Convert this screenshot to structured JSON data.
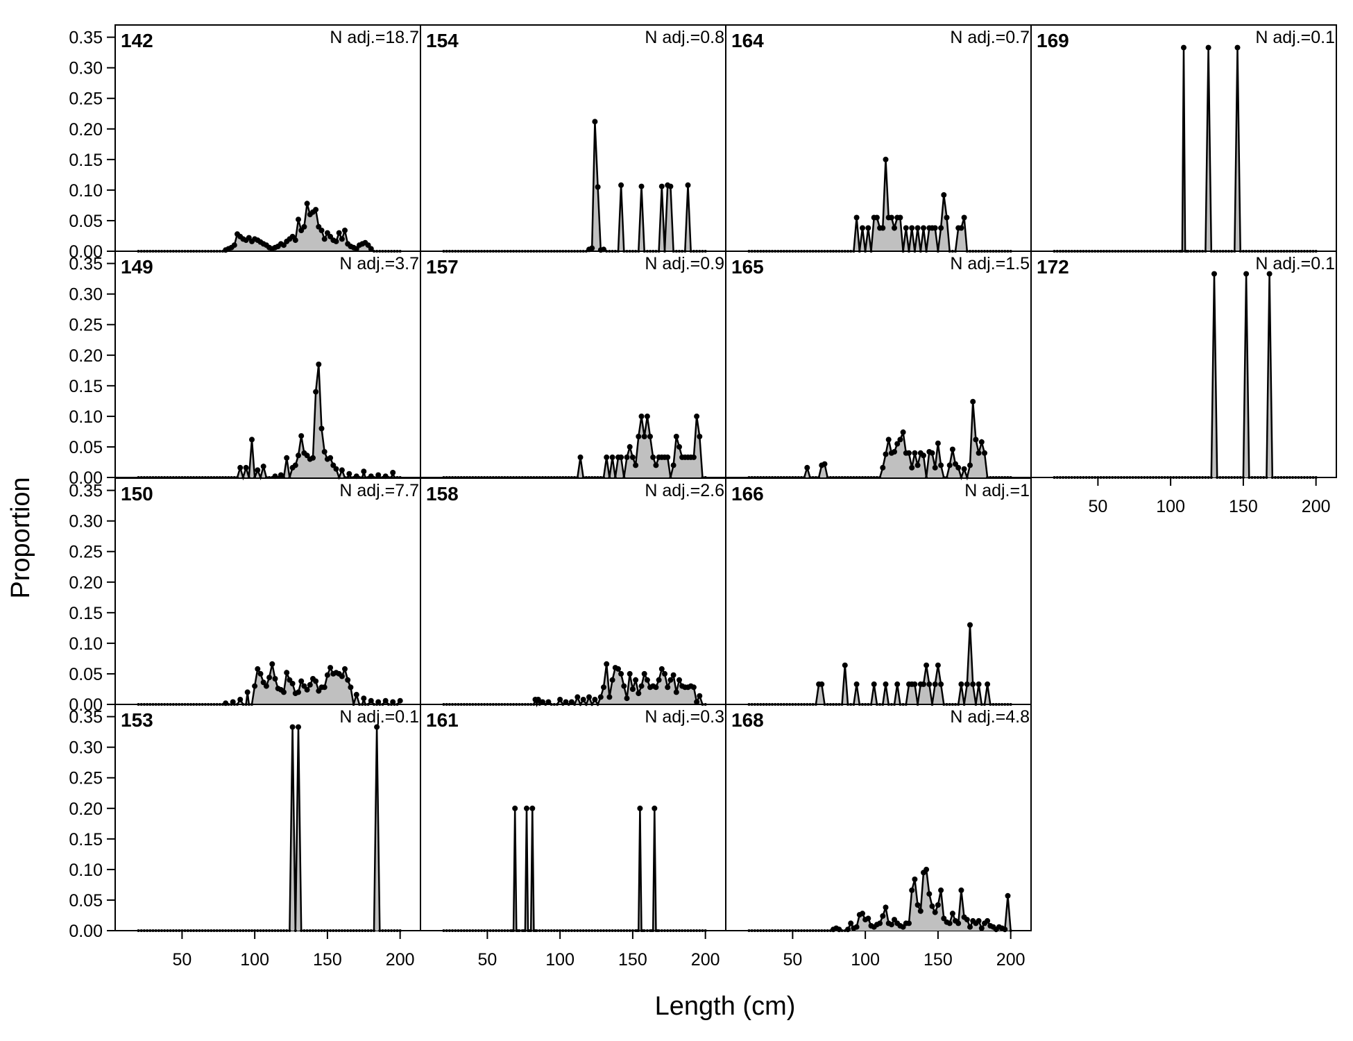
{
  "figure": {
    "xlabel": "Length (cm)",
    "ylabel": "Proportion",
    "xticks": [
      50,
      100,
      150,
      200
    ],
    "yticks": [
      "0.00",
      "0.05",
      "0.10",
      "0.15",
      "0.20",
      "0.25",
      "0.30",
      "0.35"
    ],
    "fill_color": "#c0c0c0",
    "line_color": "#000000"
  },
  "chart_data": [
    {
      "type": "area",
      "panel": "142",
      "n_adj": "N adj.=18.7",
      "col": 0,
      "row": 0,
      "x": [
        80,
        82,
        84,
        86,
        88,
        90,
        92,
        94,
        96,
        98,
        100,
        102,
        104,
        106,
        108,
        110,
        112,
        114,
        116,
        118,
        120,
        122,
        124,
        126,
        128,
        130,
        132,
        134,
        136,
        138,
        140,
        142,
        144,
        146,
        148,
        150,
        152,
        154,
        156,
        158,
        160,
        162,
        164,
        166,
        168,
        170,
        172,
        174,
        176,
        178,
        180
      ],
      "values": [
        0.002,
        0.004,
        0.006,
        0.01,
        0.028,
        0.024,
        0.02,
        0.018,
        0.022,
        0.016,
        0.02,
        0.018,
        0.015,
        0.012,
        0.01,
        0.006,
        0.004,
        0.006,
        0.008,
        0.012,
        0.01,
        0.016,
        0.02,
        0.024,
        0.018,
        0.052,
        0.034,
        0.04,
        0.078,
        0.06,
        0.064,
        0.068,
        0.04,
        0.034,
        0.02,
        0.03,
        0.024,
        0.018,
        0.016,
        0.03,
        0.02,
        0.034,
        0.012,
        0.008,
        0.006,
        0.004,
        0.01,
        0.012,
        0.014,
        0.01,
        0.004
      ]
    },
    {
      "type": "area",
      "panel": "149",
      "n_adj": "N adj.=3.7",
      "col": 0,
      "row": 1,
      "x": [
        90,
        94,
        98,
        102,
        106,
        110,
        114,
        118,
        122,
        126,
        128,
        130,
        132,
        134,
        136,
        138,
        140,
        142,
        144,
        146,
        148,
        150,
        152,
        154,
        156,
        160,
        165,
        170,
        175,
        180,
        185,
        190,
        195
      ],
      "values": [
        0.016,
        0.016,
        0.062,
        0.012,
        0.018,
        0.0,
        0.002,
        0.004,
        0.032,
        0.016,
        0.02,
        0.036,
        0.068,
        0.04,
        0.036,
        0.03,
        0.032,
        0.14,
        0.185,
        0.08,
        0.042,
        0.03,
        0.032,
        0.02,
        0.014,
        0.012,
        0.006,
        0.002,
        0.01,
        0.002,
        0.004,
        0.002,
        0.008
      ]
    },
    {
      "type": "area",
      "panel": "150",
      "n_adj": "N adj.=7.7",
      "col": 0,
      "row": 2,
      "x": [
        80,
        85,
        90,
        95,
        100,
        102,
        104,
        106,
        108,
        110,
        112,
        114,
        116,
        118,
        120,
        122,
        124,
        126,
        128,
        130,
        132,
        134,
        136,
        138,
        140,
        142,
        144,
        146,
        148,
        150,
        152,
        154,
        156,
        158,
        160,
        162,
        164,
        166,
        170,
        175,
        180,
        185,
        190,
        195,
        200
      ],
      "values": [
        0.002,
        0.004,
        0.008,
        0.02,
        0.03,
        0.058,
        0.05,
        0.036,
        0.03,
        0.044,
        0.066,
        0.042,
        0.026,
        0.024,
        0.02,
        0.052,
        0.04,
        0.034,
        0.018,
        0.02,
        0.038,
        0.03,
        0.024,
        0.032,
        0.042,
        0.038,
        0.022,
        0.028,
        0.028,
        0.048,
        0.06,
        0.05,
        0.052,
        0.05,
        0.046,
        0.058,
        0.04,
        0.028,
        0.016,
        0.01,
        0.006,
        0.004,
        0.006,
        0.004,
        0.006
      ]
    },
    {
      "type": "area",
      "panel": "153",
      "n_adj": "N adj.=0.1",
      "col": 0,
      "row": 3,
      "x": [
        124,
        126,
        128,
        130,
        132,
        182,
        184,
        186
      ],
      "values": [
        0,
        0.333,
        0,
        0.333,
        0,
        0,
        0.333,
        0
      ]
    },
    {
      "type": "area",
      "panel": "154",
      "n_adj": "N adj.=0.8",
      "col": 1,
      "row": 0,
      "x": [
        118,
        120,
        122,
        124,
        126,
        128,
        130,
        140,
        142,
        144,
        154,
        156,
        158,
        168,
        170,
        172,
        174,
        176,
        178,
        186,
        188,
        190
      ],
      "values": [
        0,
        0.003,
        0.005,
        0.212,
        0.105,
        0.002,
        0.003,
        0,
        0.108,
        0,
        0,
        0.106,
        0,
        0,
        0.106,
        0,
        0.108,
        0.106,
        0,
        0,
        0.108,
        0
      ]
    },
    {
      "type": "area",
      "panel": "157",
      "n_adj": "N adj.=0.9",
      "col": 1,
      "row": 1,
      "x": [
        112,
        114,
        116,
        130,
        132,
        134,
        136,
        138,
        140,
        142,
        144,
        146,
        148,
        150,
        152,
        154,
        156,
        158,
        160,
        162,
        164,
        166,
        168,
        170,
        172,
        174,
        176,
        178,
        180,
        182,
        184,
        186,
        188,
        190,
        192,
        194,
        196,
        198
      ],
      "values": [
        0,
        0.033,
        0,
        0,
        0.033,
        0,
        0.033,
        0,
        0.033,
        0.033,
        0,
        0.033,
        0.05,
        0.033,
        0.02,
        0.067,
        0.1,
        0.067,
        0.1,
        0.067,
        0.033,
        0.02,
        0.033,
        0.033,
        0.033,
        0.033,
        0,
        0.02,
        0.067,
        0.05,
        0.033,
        0.033,
        0.033,
        0.033,
        0.033,
        0.1,
        0.067,
        0
      ]
    },
    {
      "type": "area",
      "panel": "158",
      "n_adj": "N adj.=2.6",
      "col": 1,
      "row": 2,
      "x": [
        80,
        83,
        85,
        88,
        92,
        96,
        100,
        104,
        108,
        112,
        116,
        120,
        124,
        128,
        130,
        132,
        134,
        136,
        138,
        140,
        142,
        144,
        146,
        148,
        150,
        152,
        154,
        156,
        158,
        160,
        162,
        164,
        166,
        168,
        170,
        172,
        174,
        176,
        178,
        180,
        182,
        184,
        186,
        188,
        190,
        192,
        194,
        196
      ],
      "values": [
        0,
        0.008,
        0.008,
        0.004,
        0.004,
        0.0,
        0.008,
        0.004,
        0.004,
        0.012,
        0.008,
        0.012,
        0.008,
        0.012,
        0.028,
        0.066,
        0.012,
        0.04,
        0.06,
        0.058,
        0.05,
        0.03,
        0.01,
        0.05,
        0.025,
        0.04,
        0.018,
        0.03,
        0.05,
        0.04,
        0.028,
        0.03,
        0.028,
        0.04,
        0.058,
        0.05,
        0.028,
        0.04,
        0.048,
        0.02,
        0.04,
        0.03,
        0.028,
        0.028,
        0.03,
        0.028,
        0.004,
        0.014
      ]
    },
    {
      "type": "area",
      "panel": "161",
      "n_adj": "N adj.=0.3",
      "col": 1,
      "row": 3,
      "x": [
        67,
        69,
        71,
        75,
        77,
        79,
        81,
        83,
        153,
        155,
        157,
        163,
        165,
        167
      ],
      "values": [
        0,
        0.2,
        0,
        0,
        0.2,
        0,
        0.2,
        0,
        0,
        0.2,
        0,
        0,
        0.2,
        0
      ]
    },
    {
      "type": "area",
      "panel": "164",
      "n_adj": "N adj.=0.7",
      "col": 2,
      "row": 0,
      "x": [
        92,
        94,
        96,
        98,
        100,
        102,
        104,
        106,
        108,
        110,
        112,
        114,
        116,
        118,
        120,
        122,
        124,
        126,
        128,
        130,
        132,
        134,
        136,
        138,
        140,
        142,
        144,
        146,
        148,
        150,
        152,
        154,
        156,
        160,
        162,
        164,
        166,
        168,
        170,
        172,
        174,
        176,
        178,
        180
      ],
      "values": [
        0,
        0.055,
        0,
        0.038,
        0,
        0.038,
        0,
        0.055,
        0.055,
        0.038,
        0.038,
        0.15,
        0.055,
        0.055,
        0.038,
        0.055,
        0.055,
        0,
        0.038,
        0,
        0.038,
        0,
        0.038,
        0,
        0.038,
        0,
        0.038,
        0.038,
        0.038,
        0,
        0.038,
        0.092,
        0.055,
        0,
        0,
        0.038,
        0.038,
        0.055,
        0,
        0,
        0,
        0,
        0,
        0
      ]
    },
    {
      "type": "area",
      "panel": "165",
      "n_adj": "N adj.=1.5",
      "col": 2,
      "row": 1,
      "x": [
        58,
        60,
        62,
        68,
        70,
        72,
        74,
        110,
        112,
        114,
        116,
        118,
        120,
        122,
        124,
        126,
        128,
        130,
        132,
        134,
        136,
        138,
        140,
        142,
        144,
        146,
        148,
        150,
        152,
        154,
        156,
        158,
        160,
        162,
        164,
        166,
        168,
        170,
        172,
        174,
        176,
        178,
        180,
        182
      ],
      "values": [
        0,
        0.016,
        0,
        0,
        0.02,
        0.022,
        0,
        0,
        0.016,
        0.038,
        0.062,
        0.04,
        0.042,
        0.055,
        0.062,
        0.074,
        0.04,
        0.04,
        0.016,
        0.04,
        0.02,
        0.04,
        0.036,
        0,
        0.042,
        0.04,
        0.016,
        0.056,
        0.02,
        0,
        0,
        0.02,
        0.046,
        0.022,
        0.016,
        0,
        0.014,
        0,
        0.02,
        0.124,
        0.062,
        0.04,
        0.058,
        0.04
      ]
    },
    {
      "type": "area",
      "panel": "166",
      "n_adj": "N adj.=1",
      "col": 2,
      "row": 2,
      "x": [
        66,
        68,
        70,
        72,
        84,
        86,
        88,
        92,
        94,
        96,
        104,
        106,
        108,
        112,
        114,
        116,
        120,
        122,
        124,
        128,
        130,
        132,
        134,
        136,
        138,
        140,
        142,
        144,
        146,
        148,
        150,
        152,
        154,
        156,
        158,
        164,
        166,
        168,
        170,
        172,
        174,
        176,
        178,
        182,
        184,
        186
      ],
      "values": [
        0,
        0.033,
        0.033,
        0,
        0,
        0.064,
        0,
        0,
        0.033,
        0,
        0,
        0.033,
        0,
        0,
        0.033,
        0,
        0,
        0.033,
        0,
        0,
        0.033,
        0.033,
        0.033,
        0,
        0.033,
        0.033,
        0.064,
        0.033,
        0,
        0.033,
        0.064,
        0.033,
        0,
        0,
        0,
        0,
        0.033,
        0,
        0.033,
        0.13,
        0.033,
        0,
        0.033,
        0,
        0.033,
        0
      ]
    },
    {
      "type": "area",
      "panel": "168",
      "n_adj": "N adj.=4.8",
      "col": 2,
      "row": 3,
      "x": [
        76,
        78,
        80,
        82,
        86,
        88,
        90,
        92,
        94,
        96,
        98,
        100,
        102,
        104,
        106,
        108,
        110,
        112,
        114,
        116,
        118,
        120,
        122,
        124,
        126,
        128,
        130,
        132,
        134,
        136,
        138,
        140,
        142,
        144,
        146,
        148,
        150,
        152,
        154,
        156,
        158,
        160,
        162,
        164,
        166,
        168,
        170,
        172,
        174,
        176,
        178,
        180,
        182,
        184,
        186,
        188,
        190,
        192,
        194,
        196,
        198,
        200
      ],
      "values": [
        0,
        0.002,
        0.004,
        0.002,
        0,
        0.002,
        0.012,
        0.004,
        0.006,
        0.026,
        0.028,
        0.018,
        0.02,
        0.008,
        0.006,
        0.01,
        0.012,
        0.024,
        0.038,
        0.012,
        0.01,
        0.018,
        0.012,
        0.008,
        0.006,
        0.012,
        0.012,
        0.066,
        0.084,
        0.042,
        0.032,
        0.095,
        0.1,
        0.06,
        0.04,
        0.03,
        0.042,
        0.066,
        0.02,
        0.014,
        0.012,
        0.028,
        0.016,
        0.012,
        0.066,
        0.022,
        0.018,
        0.006,
        0.016,
        0.012,
        0.016,
        0.004,
        0.012,
        0.016,
        0.008,
        0.006,
        0.002,
        0.006,
        0.004,
        0.002,
        0.057,
        0
      ]
    },
    {
      "type": "area",
      "panel": "169",
      "n_adj": "N adj.=0.1",
      "col": 3,
      "row": 0,
      "x": [
        107,
        109,
        111,
        124,
        126,
        128,
        144,
        146,
        148
      ],
      "values": [
        0,
        0.333,
        0,
        0,
        0.333,
        0,
        0,
        0.333,
        0
      ]
    },
    {
      "type": "area",
      "panel": "172",
      "n_adj": "N adj.=0.1",
      "col": 3,
      "row": 1,
      "x": [
        128,
        130,
        132,
        150,
        152,
        154,
        166,
        168,
        170
      ],
      "values": [
        0,
        0.333,
        0,
        0,
        0.333,
        0,
        0,
        0.333,
        0
      ]
    }
  ]
}
